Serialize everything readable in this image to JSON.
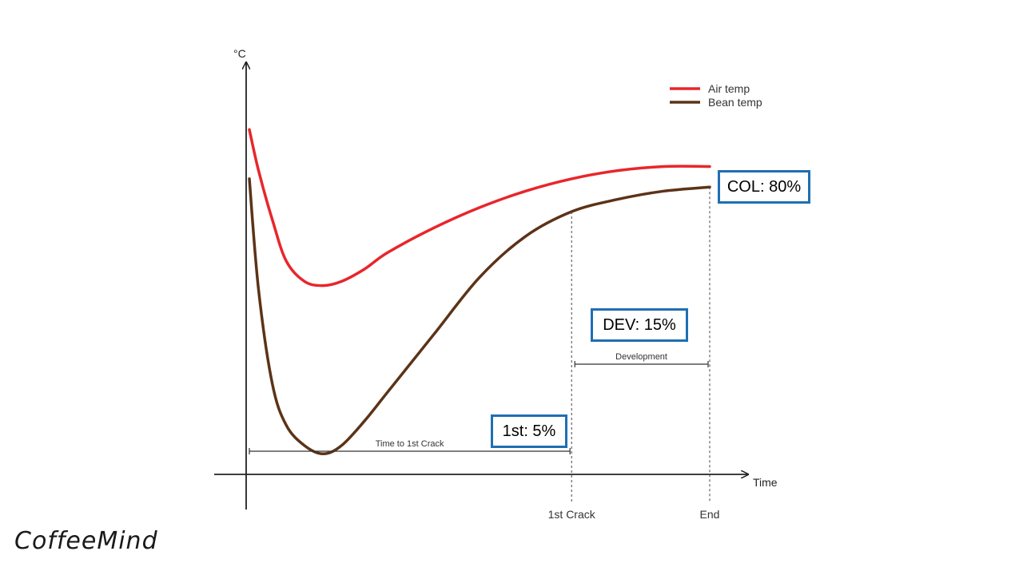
{
  "chart_data": {
    "type": "line",
    "title": "",
    "xlabel": "Time",
    "ylabel": "°C",
    "x": [
      0,
      0.02,
      0.05,
      0.08,
      0.12,
      0.16,
      0.2,
      0.25,
      0.3,
      0.4,
      0.5,
      0.6,
      0.7,
      0.8,
      0.9,
      1.0
    ],
    "series": [
      {
        "name": "Air temp",
        "color": "#e8262b",
        "values": [
          0.84,
          0.74,
          0.62,
          0.52,
          0.47,
          0.46,
          0.47,
          0.5,
          0.54,
          0.6,
          0.65,
          0.69,
          0.72,
          0.74,
          0.75,
          0.75
        ]
      },
      {
        "name": "Bean temp",
        "color": "#5c3317",
        "values": [
          0.72,
          0.45,
          0.22,
          0.12,
          0.07,
          0.05,
          0.07,
          0.13,
          0.2,
          0.34,
          0.48,
          0.58,
          0.64,
          0.67,
          0.69,
          0.7
        ]
      }
    ],
    "x_markers": [
      {
        "label": "1st Crack",
        "x": 0.7
      },
      {
        "label": "End",
        "x": 1.0
      }
    ],
    "spans": [
      {
        "label": "Time to 1st Crack",
        "from": 0,
        "to": 0.7
      },
      {
        "label": "Development",
        "from": 0.7,
        "to": 1.0
      }
    ],
    "legend_position": "top-right",
    "grid": false
  },
  "callouts": {
    "col": "COL: 80%",
    "dev": "DEV: 15%",
    "first": "1st: 5%"
  },
  "brand": {
    "logo_text": "CoffeeMind"
  }
}
